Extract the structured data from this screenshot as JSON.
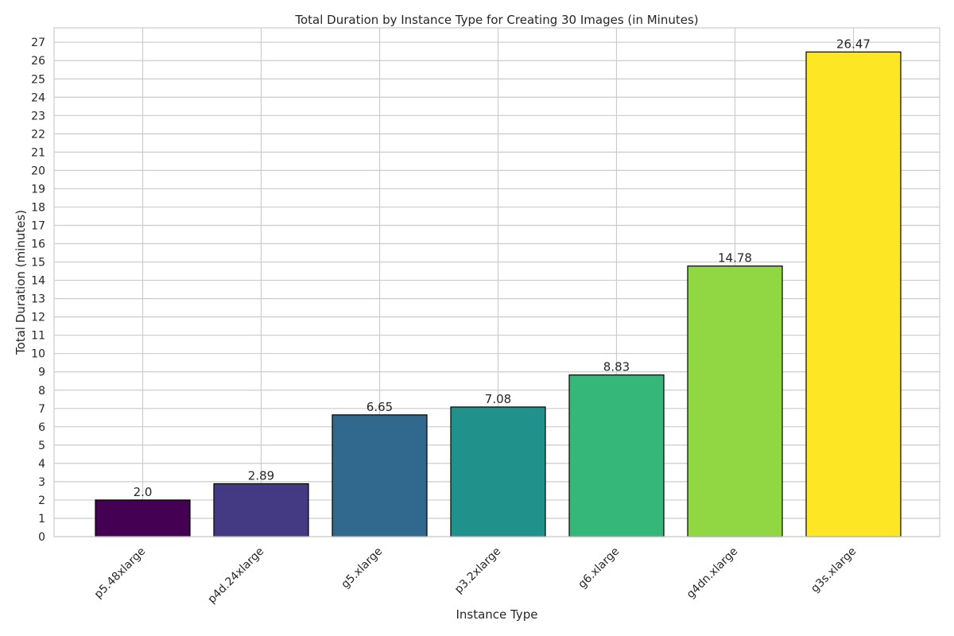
{
  "chart_data": {
    "type": "bar",
    "title": "Total Duration by Instance Type for Creating 30 Images (in Minutes)",
    "xlabel": "Instance Type",
    "ylabel": "Total Duration (minutes)",
    "categories": [
      "p5.48xlarge",
      "p4d.24xlarge",
      "g5.xlarge",
      "p3.2xlarge",
      "g6.xlarge",
      "g4dn.xlarge",
      "g3s.xlarge"
    ],
    "values": [
      2.0,
      2.89,
      6.65,
      7.08,
      8.83,
      14.78,
      26.47
    ],
    "value_labels": [
      "2.0",
      "2.89",
      "6.65",
      "7.08",
      "8.83",
      "14.78",
      "26.47"
    ],
    "colors": [
      "#440154",
      "#443983",
      "#31688e",
      "#21918c",
      "#35b779",
      "#90d743",
      "#fde725"
    ],
    "yticks": [
      "0",
      "1",
      "2",
      "3",
      "4",
      "5",
      "6",
      "7",
      "8",
      "9",
      "10",
      "11",
      "12",
      "13",
      "14",
      "15",
      "16",
      "17",
      "18",
      "19",
      "20",
      "21",
      "22",
      "23",
      "24",
      "25",
      "26",
      "27"
    ],
    "ylim": [
      0,
      27.79
    ],
    "grid": true,
    "legend": "none"
  }
}
